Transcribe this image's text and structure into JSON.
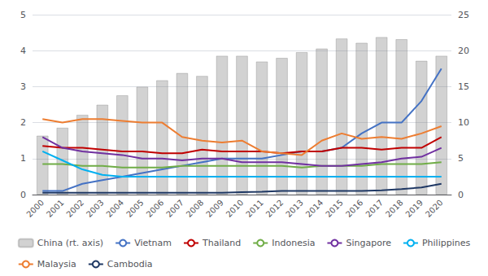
{
  "chart_data": {
    "type": "line",
    "categories": [
      "2000",
      "2001",
      "2002",
      "2003",
      "2004",
      "2005",
      "2006",
      "2007",
      "2008",
      "2009",
      "2010",
      "2011",
      "2012",
      "2013",
      "2014",
      "2015",
      "2016",
      "2017",
      "2018",
      "2019",
      "2020"
    ],
    "series": [
      {
        "name": "China (rt. axis)",
        "type": "bar",
        "axis": "y2",
        "color": "#7F7F7F",
        "values": [
          8.2,
          9.3,
          11.1,
          12.5,
          13.8,
          15.0,
          15.9,
          16.9,
          16.5,
          19.3,
          19.3,
          18.5,
          19.0,
          19.8,
          20.3,
          21.7,
          21.1,
          21.9,
          21.6,
          18.6,
          19.3
        ]
      },
      {
        "name": "Vietnam",
        "type": "line",
        "color": "#4472C4",
        "values": [
          0.1,
          0.1,
          0.3,
          0.4,
          0.5,
          0.6,
          0.7,
          0.8,
          0.9,
          1.0,
          1.0,
          1.0,
          1.1,
          1.2,
          1.2,
          1.3,
          1.7,
          2.0,
          2.0,
          2.6,
          3.5
        ]
      },
      {
        "name": "Thailand",
        "type": "line",
        "color": "#C00000",
        "values": [
          1.35,
          1.3,
          1.3,
          1.25,
          1.2,
          1.2,
          1.15,
          1.15,
          1.25,
          1.2,
          1.2,
          1.2,
          1.15,
          1.2,
          1.2,
          1.3,
          1.3,
          1.25,
          1.3,
          1.3,
          1.6
        ]
      },
      {
        "name": "Indonesia",
        "type": "line",
        "color": "#70AD47",
        "values": [
          0.85,
          0.85,
          0.8,
          0.8,
          0.75,
          0.75,
          0.75,
          0.8,
          0.8,
          0.8,
          0.8,
          0.8,
          0.8,
          0.75,
          0.8,
          0.8,
          0.8,
          0.85,
          0.85,
          0.85,
          0.9
        ]
      },
      {
        "name": "Singapore",
        "type": "line",
        "color": "#7030A0",
        "values": [
          1.6,
          1.3,
          1.2,
          1.15,
          1.1,
          1.0,
          1.0,
          0.95,
          1.0,
          1.0,
          0.9,
          0.9,
          0.9,
          0.85,
          0.8,
          0.8,
          0.85,
          0.9,
          1.0,
          1.05,
          1.3
        ]
      },
      {
        "name": "Philippines",
        "type": "line",
        "color": "#00B0F0",
        "values": [
          1.2,
          0.95,
          0.7,
          0.55,
          0.5,
          0.5,
          0.5,
          0.5,
          0.5,
          0.5,
          0.5,
          0.5,
          0.5,
          0.5,
          0.5,
          0.5,
          0.5,
          0.5,
          0.5,
          0.5,
          0.5
        ]
      },
      {
        "name": "Malaysia",
        "type": "line",
        "color": "#ED7D31",
        "values": [
          2.1,
          2.0,
          2.1,
          2.1,
          2.05,
          2.0,
          2.0,
          1.6,
          1.5,
          1.45,
          1.5,
          1.2,
          1.15,
          1.1,
          1.5,
          1.7,
          1.55,
          1.6,
          1.55,
          1.7,
          1.9
        ]
      },
      {
        "name": "Cambodia",
        "type": "line",
        "color": "#1F3864",
        "values": [
          0.05,
          0.05,
          0.05,
          0.05,
          0.05,
          0.05,
          0.05,
          0.05,
          0.05,
          0.05,
          0.07,
          0.08,
          0.1,
          0.1,
          0.1,
          0.1,
          0.1,
          0.12,
          0.15,
          0.2,
          0.3
        ]
      }
    ],
    "ylim": [
      0,
      5
    ],
    "yticks": [
      0,
      1,
      2,
      3,
      4,
      5
    ],
    "y2lim": [
      0,
      25
    ],
    "y2ticks": [
      0,
      5,
      10,
      15,
      20,
      25
    ],
    "grid": true,
    "legend": "bottom"
  }
}
